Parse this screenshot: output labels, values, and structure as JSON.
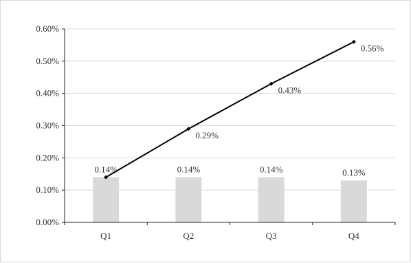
{
  "chart_data": {
    "type": "bar",
    "categories": [
      "Q1",
      "Q2",
      "Q3",
      "Q4"
    ],
    "y_ticks": [
      "0.00%",
      "0.10%",
      "0.20%",
      "0.30%",
      "0.40%",
      "0.50%",
      "0.60%"
    ],
    "ylim": [
      0,
      0.6
    ],
    "grid": true,
    "legend": "none",
    "series": [
      {
        "type": "bar",
        "values": [
          0.14,
          0.14,
          0.14,
          0.13
        ],
        "labels": [
          "0.14%",
          "0.14%",
          "0.14%",
          "0.13%"
        ],
        "color": "#d9d9d9"
      },
      {
        "type": "line",
        "values": [
          0.14,
          0.29,
          0.43,
          0.56
        ],
        "labels": [
          "",
          "0.29%",
          "0.43%",
          "0.56%"
        ],
        "color": "#000000"
      }
    ]
  }
}
